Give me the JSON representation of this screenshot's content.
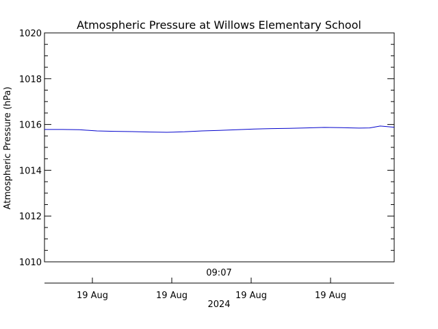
{
  "chart_data": {
    "type": "line",
    "title": "Atmospheric Pressure at Willows Elementary School",
    "ylabel": "Atmospheric Pressure (hPa)",
    "ylim": [
      1010,
      1020
    ],
    "yticks": [
      1010,
      1012,
      1014,
      1016,
      1018,
      1020
    ],
    "ytick_labels": [
      "1010",
      "1012",
      "1014",
      "1016",
      "1018",
      "1020"
    ],
    "y_minor_step": 0.5,
    "x_time_label": "09:07",
    "x_date_labels": [
      "19 Aug",
      "19 Aug",
      "19 Aug",
      "19 Aug"
    ],
    "x_year_label": "2024",
    "series": [
      {
        "color": "#0000cc",
        "points": [
          [
            0.0,
            1015.78
          ],
          [
            0.05,
            1015.78
          ],
          [
            0.1,
            1015.77
          ],
          [
            0.15,
            1015.72
          ],
          [
            0.2,
            1015.7
          ],
          [
            0.25,
            1015.69
          ],
          [
            0.3,
            1015.67
          ],
          [
            0.35,
            1015.66
          ],
          [
            0.4,
            1015.68
          ],
          [
            0.45,
            1015.72
          ],
          [
            0.5,
            1015.74
          ],
          [
            0.55,
            1015.77
          ],
          [
            0.6,
            1015.8
          ],
          [
            0.65,
            1015.82
          ],
          [
            0.7,
            1015.83
          ],
          [
            0.75,
            1015.85
          ],
          [
            0.8,
            1015.87
          ],
          [
            0.85,
            1015.86
          ],
          [
            0.9,
            1015.84
          ],
          [
            0.93,
            1015.85
          ],
          [
            0.96,
            1015.93
          ],
          [
            1.0,
            1015.88
          ]
        ]
      }
    ],
    "grid": false
  }
}
